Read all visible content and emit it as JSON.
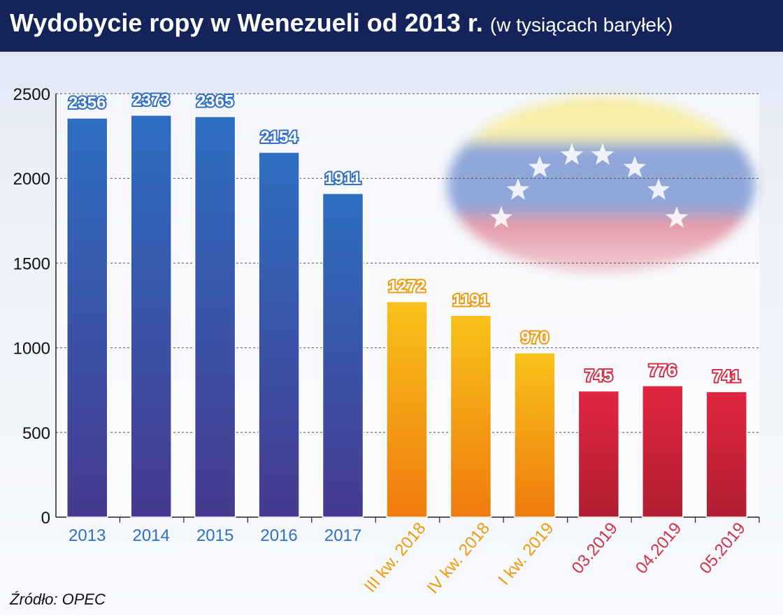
{
  "header": {
    "title": "Wydobycie ropy w Wenezueli od 2013 r.",
    "subtitle": "(w tysiącach baryłek)"
  },
  "source": "Źródło: OPEC",
  "colors": {
    "header_bg": "#14245a",
    "blue_top": "#2d6fc2",
    "blue_bottom": "#463a8f",
    "orange_top": "#f7c21a",
    "orange_bottom": "#f07a0e",
    "red_top": "#e2263f",
    "red_bottom": "#b01e33",
    "blue_text": "#2f6fc8",
    "orange_text": "#f09a10",
    "red_text": "#d23349"
  },
  "icons": [
    "star-icon"
  ],
  "chart_data": {
    "type": "bar",
    "title": "Wydobycie ropy w Wenezueli od 2013 r.",
    "subtitle": "(w tysiącach baryłek)",
    "categories": [
      "2013",
      "2014",
      "2015",
      "2016",
      "2017",
      "III kw. 2018",
      "IV kw. 2018",
      "I kw. 2019",
      "03.2019",
      "04.2019",
      "05.2019"
    ],
    "values": [
      2356,
      2373,
      2365,
      2154,
      1911,
      1272,
      1191,
      970,
      745,
      776,
      741
    ],
    "groups": [
      "blue",
      "blue",
      "blue",
      "blue",
      "blue",
      "orange",
      "orange",
      "orange",
      "red",
      "red",
      "red"
    ],
    "yticks": [
      0,
      500,
      1000,
      1500,
      2000,
      2500
    ],
    "ylim": [
      0,
      2500
    ],
    "grid": true,
    "data_labels": true
  }
}
